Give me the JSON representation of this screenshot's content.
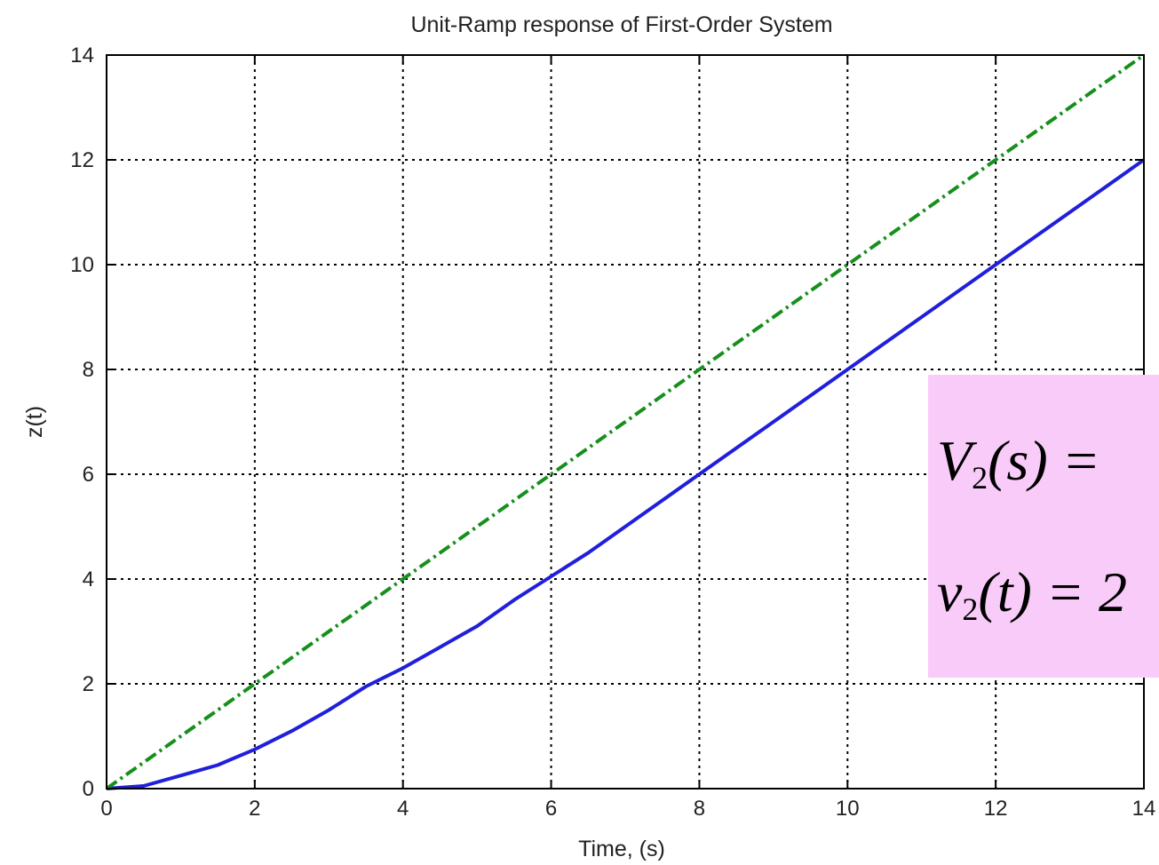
{
  "chart_data": {
    "type": "line",
    "title": "Unit-Ramp response of First-Order System",
    "xlabel": "Time, (s)",
    "ylabel": "z(t)",
    "xlim": [
      0,
      14
    ],
    "ylim": [
      0,
      14
    ],
    "xticks": [
      "0",
      "2",
      "4",
      "6",
      "8",
      "10",
      "12",
      "14"
    ],
    "yticks": [
      "0",
      "2",
      "4",
      "6",
      "8",
      "10",
      "12",
      "14"
    ],
    "grid": true,
    "grid_style": "dotted",
    "series": [
      {
        "color": "#1f1fdc",
        "line_style": "solid",
        "x": [
          0,
          0.5,
          1,
          1.5,
          2,
          2.5,
          3,
          3.5,
          4,
          4.5,
          5,
          5.5,
          6,
          6.5,
          7,
          7.5,
          8,
          9,
          10,
          11,
          12,
          13,
          14
        ],
        "y": [
          0,
          0.05,
          0.25,
          0.45,
          0.75,
          1.1,
          1.5,
          1.95,
          2.3,
          2.7,
          3.1,
          3.6,
          4.05,
          4.5,
          5.0,
          5.5,
          6.0,
          7.0,
          8.0,
          9.0,
          10.0,
          11.0,
          12.0
        ]
      },
      {
        "color": "#16901c",
        "line_style": "dash-dot",
        "x": [
          0,
          2,
          4,
          6,
          8,
          10,
          12,
          14
        ],
        "y": [
          0,
          2,
          4,
          6,
          8,
          10,
          12,
          14
        ]
      }
    ]
  },
  "equation": {
    "line1": {
      "var": "V",
      "sub": "2",
      "rest": "(s) = "
    },
    "line2": {
      "var": "v",
      "sub": "2",
      "rest": "(t) = 2"
    }
  }
}
